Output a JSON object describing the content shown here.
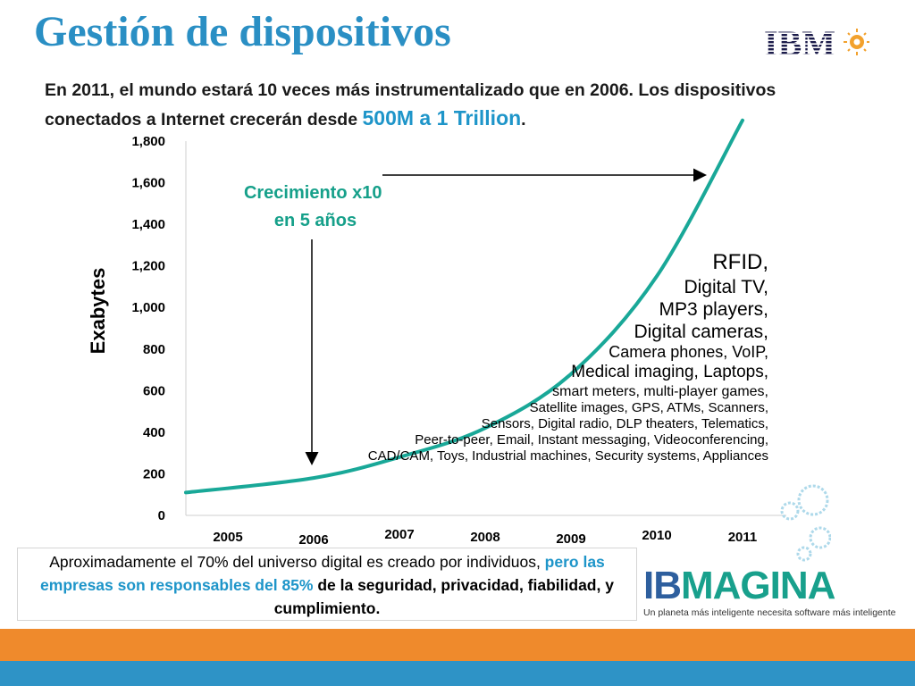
{
  "slide": {
    "title": "Gestión de dispositivos",
    "subtitle_pre": "En 2011, el mundo estará 10 veces más instrumentalizado que en 2006. Los dispositivos conectados a Internet crecerán desde ",
    "subtitle_highlight": "500M a 1 Trillion",
    "subtitle_post": ".",
    "logo_text": "IBM",
    "growth_line1": "Crecimiento x10",
    "growth_line2": "en 5 años",
    "devices": [
      {
        "text": "RFID,",
        "size": 24
      },
      {
        "text": "Digital TV,",
        "size": 21
      },
      {
        "text": "MP3 players,",
        "size": 21
      },
      {
        "text": "Digital cameras,",
        "size": 21
      },
      {
        "text": "Camera phones, VoIP,",
        "size": 18
      },
      {
        "text": "Medical imaging, Laptops,",
        "size": 19
      },
      {
        "text": "smart meters, multi-player games,",
        "size": 16
      },
      {
        "text": "Satellite images, GPS, ATMs, Scanners,",
        "size": 15
      },
      {
        "text": "Sensors, Digital radio, DLP theaters, Telematics,",
        "size": 15
      },
      {
        "text": "Peer-to-peer, Email, Instant messaging, Videoconferencing,",
        "size": 15
      },
      {
        "text": "CAD/CAM, Toys, Industrial machines, Security systems, Appliances",
        "size": 15
      }
    ],
    "note_pre": "Aproximadamente el 70% del universo digital es creado por individuos, ",
    "note_blue": "pero las empresas son responsables del 85%",
    "note_post": " de la seguridad, privacidad, fiabilidad, y cumplimiento.",
    "brand_ib": "IB",
    "brand_magina": "MAGINA",
    "brand_tagline": "Un planeta más inteligente necesita software más inteligente",
    "colors": {
      "title": "#2a8fc4",
      "curve": "#19a898",
      "highlight": "#1e95c9",
      "brand_ib": "#2e5f9e",
      "brand_magina": "#18a08c",
      "footer_orange": "#ef8a2c",
      "footer_blue": "#2e93c6"
    }
  },
  "chart_data": {
    "type": "line",
    "ylabel": "Exabytes",
    "xlabel": "",
    "ylim": [
      0,
      1800
    ],
    "yticks": [
      0,
      200,
      400,
      600,
      800,
      1000,
      1200,
      1400,
      1600,
      1800
    ],
    "ytick_labels": [
      "0",
      "200",
      "400",
      "600",
      "800",
      "1,000",
      "1,200",
      "1,400",
      "1,600",
      "1,800"
    ],
    "categories": [
      "2005",
      "2006",
      "2007",
      "2008",
      "2009",
      "2010",
      "2011"
    ],
    "x": [
      2005,
      2006,
      2007,
      2008,
      2009,
      2010,
      2011
    ],
    "series": [
      {
        "values": [
          110,
          180,
          280,
          420,
          680,
          1150,
          1900
        ]
      }
    ],
    "grid": false
  }
}
